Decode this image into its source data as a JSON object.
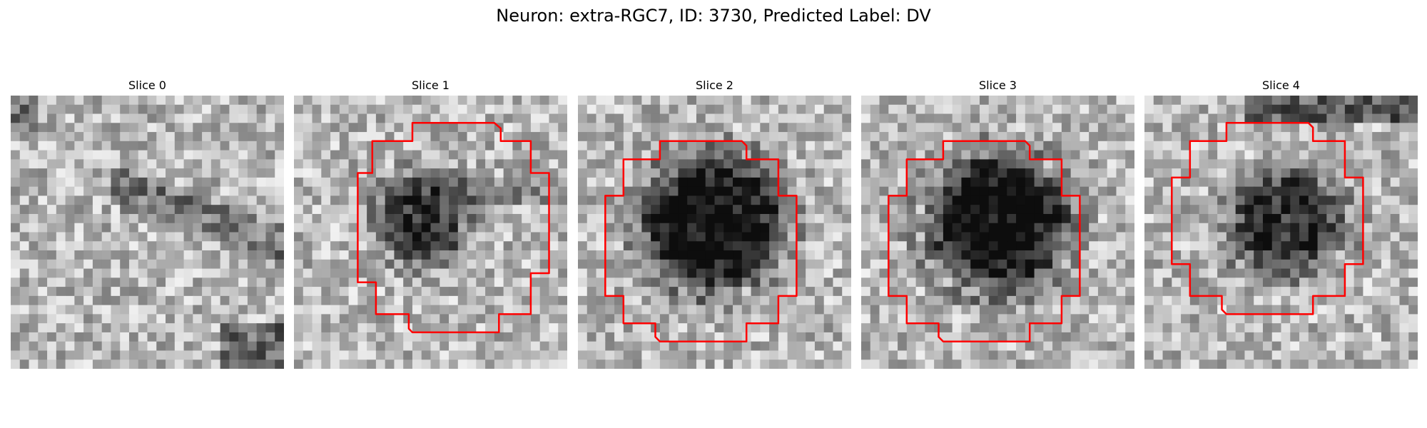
{
  "figure": {
    "title": "Neuron: extra-RGC7, ID: 3730, Predicted Label: DV"
  },
  "panels": [
    {
      "title": "Slice 0",
      "has_contour": false,
      "blob": "none"
    },
    {
      "title": "Slice 1",
      "has_contour": true,
      "blob": "small-dark-left"
    },
    {
      "title": "Slice 2",
      "has_contour": true,
      "blob": "large-dark-center"
    },
    {
      "title": "Slice 3",
      "has_contour": true,
      "blob": "large-dark-center"
    },
    {
      "title": "Slice 4",
      "has_contour": true,
      "blob": "medium-dark-center"
    }
  ],
  "colors": {
    "contour": "#ff0000",
    "background": "#ffffff"
  },
  "colormap": "gray"
}
